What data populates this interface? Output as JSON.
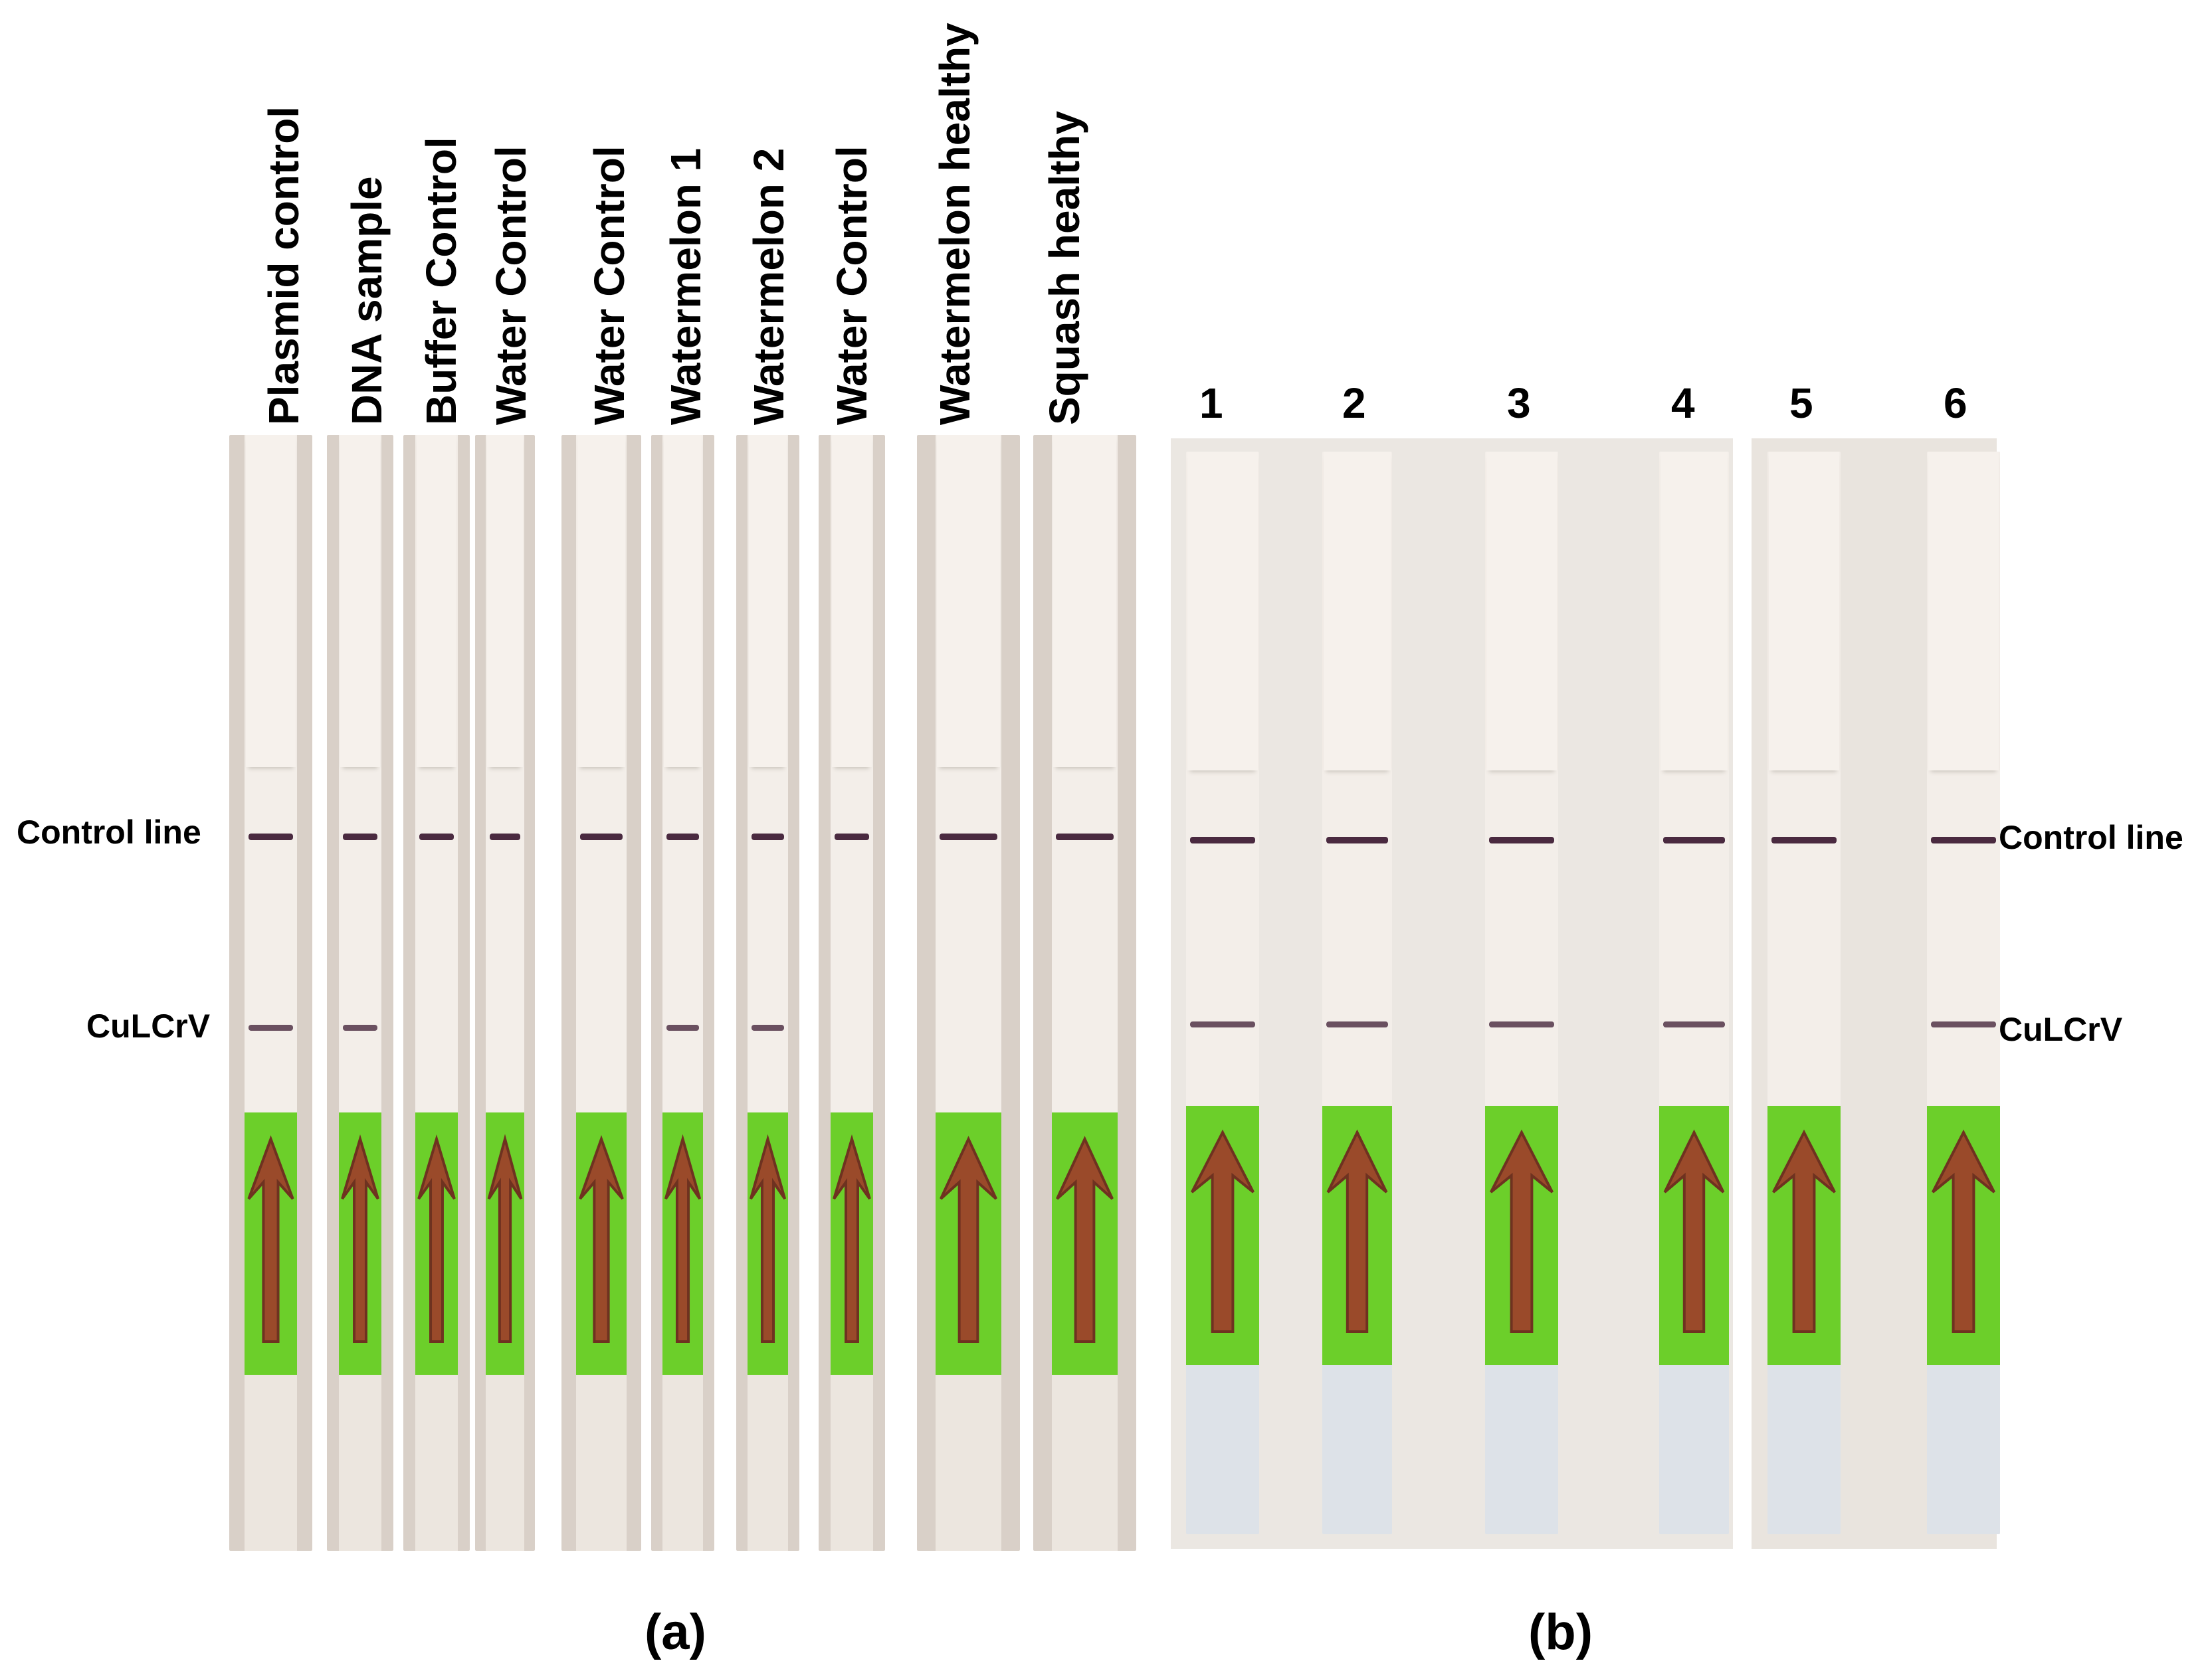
{
  "panel_a": {
    "label": "(a)",
    "lanes": [
      {
        "name": "Plasmid control",
        "control_line": true,
        "test_line": true
      },
      {
        "name": "DNA sample",
        "control_line": true,
        "test_line": true
      },
      {
        "name": "Buffer Control",
        "control_line": true,
        "test_line": false
      },
      {
        "name": "Water Control",
        "control_line": true,
        "test_line": false
      },
      {
        "name": "Water Control",
        "control_line": true,
        "test_line": false
      },
      {
        "name": "Watermelon 1",
        "control_line": true,
        "test_line": true
      },
      {
        "name": "Watermelon 2",
        "control_line": true,
        "test_line": true
      },
      {
        "name": "Water Control",
        "control_line": true,
        "test_line": false
      },
      {
        "name": "Watermelon healthy",
        "control_line": true,
        "test_line": false
      },
      {
        "name": "Squash healthy",
        "control_line": true,
        "test_line": false
      }
    ],
    "left_labels": {
      "control": "Control line",
      "test": "CuLCrV"
    }
  },
  "panel_b": {
    "label": "(b)",
    "lanes": [
      {
        "name": "1",
        "control_line": true,
        "test_line": true
      },
      {
        "name": "2",
        "control_line": true,
        "test_line": true
      },
      {
        "name": "3",
        "control_line": true,
        "test_line": true
      },
      {
        "name": "4",
        "control_line": true,
        "test_line": true
      },
      {
        "name": "5",
        "control_line": true,
        "test_line": false
      },
      {
        "name": "6",
        "control_line": true,
        "test_line": true
      }
    ],
    "right_labels": {
      "control": "Control line",
      "test": "CuLCrV"
    }
  },
  "colors": {
    "strip_white": "#f3eee9",
    "photo_bg_a": "#d9d0c8",
    "photo_bg_b": "#ece8e3",
    "control_line": "#4a2a40",
    "test_line": "#6a5060",
    "green_label": "#6ccf2a",
    "arrow": "#9a4a2a",
    "sample_pad": "#dde2e8"
  }
}
